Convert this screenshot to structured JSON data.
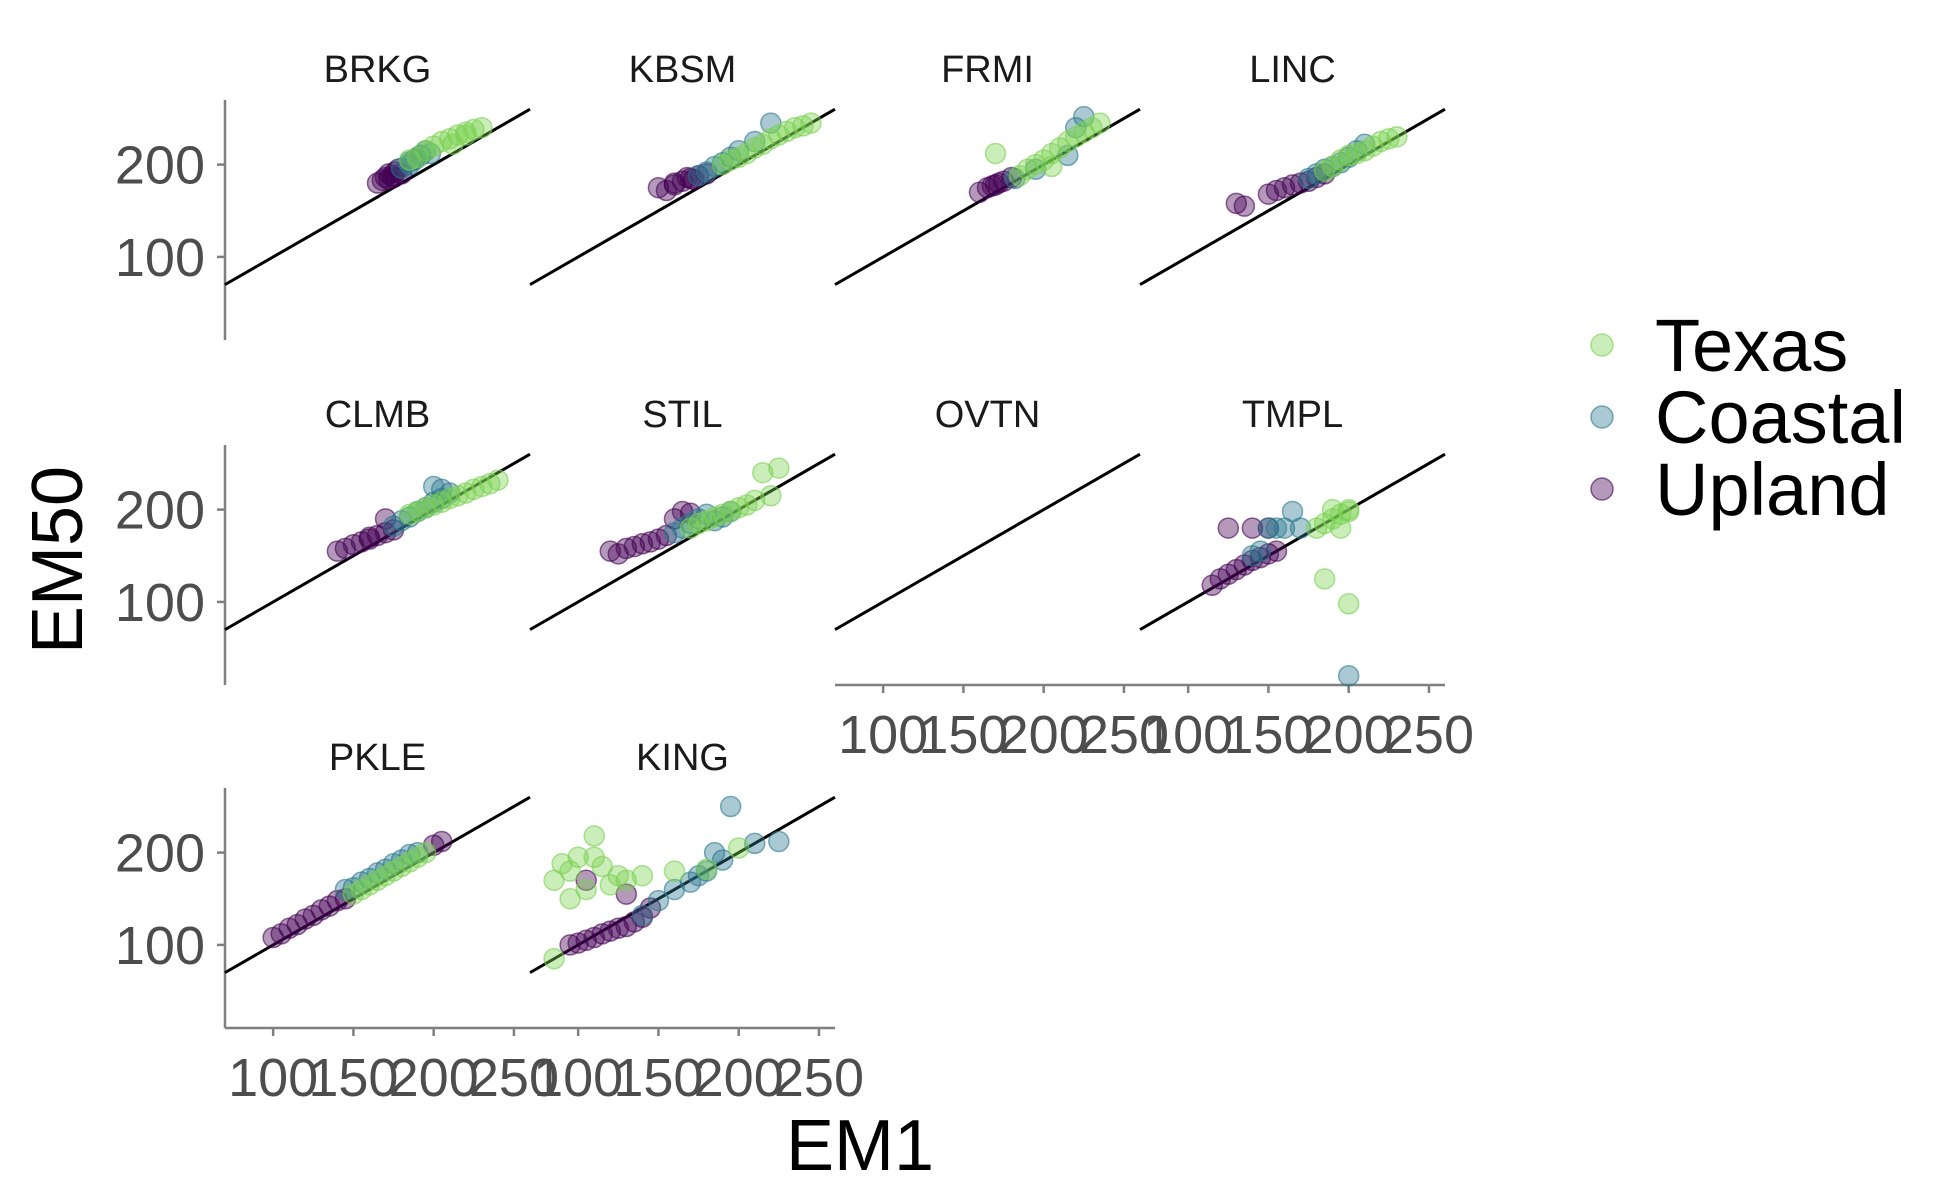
{
  "chart_data": {
    "type": "scatter",
    "xlabel": "EM1",
    "ylabel": "EM50",
    "xlim": [
      70,
      260
    ],
    "ylim": [
      10,
      270
    ],
    "x_ticks": [
      "100",
      "150",
      "200",
      "250"
    ],
    "y_ticks": [
      "100",
      "200"
    ],
    "reference_line": {
      "slope": 1,
      "intercept": 0
    },
    "legend": {
      "position": "right",
      "entries": [
        {
          "name": "Texas",
          "color": "#7ad151"
        },
        {
          "name": "Coastal",
          "color": "#2a788e"
        },
        {
          "name": "Upland",
          "color": "#440154"
        }
      ]
    },
    "point_opacity": 0.4,
    "facets": [
      {
        "label": "BRKG",
        "points": [
          {
            "group": "Upland",
            "x": [
              165,
              168,
              170,
              172,
              174,
              176,
              178,
              180,
              172,
              175
            ],
            "y": [
              180,
              183,
              186,
              190,
              188,
              192,
              195,
              190,
              184,
              186
            ]
          },
          {
            "group": "Coastal",
            "x": [
              180,
              185,
              188,
              192,
              195,
              198,
              185,
              190
            ],
            "y": [
              196,
              200,
              205,
              210,
              215,
              212,
              203,
              208
            ]
          },
          {
            "group": "Texas",
            "x": [
              185,
              190,
              195,
              200,
              205,
              210,
              215,
              220,
              225,
              230,
              220,
              212
            ],
            "y": [
              205,
              208,
              215,
              220,
              225,
              228,
              232,
              235,
              238,
              240,
              232,
              222
            ]
          }
        ]
      },
      {
        "label": "KBSM",
        "points": [
          {
            "group": "Upland",
            "x": [
              150,
              155,
              160,
              165,
              170,
              175,
              180,
              160,
              168,
              172
            ],
            "y": [
              175,
              172,
              178,
              182,
              185,
              188,
              190,
              180,
              186,
              184
            ]
          },
          {
            "group": "Coastal",
            "x": [
              175,
              180,
              185,
              190,
              195,
              200,
              210,
              220
            ],
            "y": [
              188,
              192,
              198,
              202,
              208,
              215,
              225,
              245
            ]
          },
          {
            "group": "Texas",
            "x": [
              190,
              195,
              200,
              205,
              210,
              215,
              220,
              225,
              230,
              235,
              240,
              245
            ],
            "y": [
              200,
              205,
              208,
              212,
              218,
              222,
              228,
              232,
              236,
              240,
              242,
              245
            ]
          }
        ]
      },
      {
        "label": "FRMI",
        "points": [
          {
            "group": "Upland",
            "x": [
              160,
              165,
              170,
              175,
              180,
              168,
              172
            ],
            "y": [
              170,
              175,
              178,
              182,
              186,
              177,
              180
            ]
          },
          {
            "group": "Coastal",
            "x": [
              182,
              195,
              215,
              220,
              225
            ],
            "y": [
              185,
              195,
              210,
              240,
              252
            ]
          },
          {
            "group": "Texas",
            "x": [
              170,
              185,
              190,
              195,
              200,
              205,
              210,
              215,
              220,
              225,
              230,
              235,
              205
            ],
            "y": [
              212,
              188,
              195,
              200,
              205,
              212,
              218,
              225,
              230,
              235,
              240,
              245,
              198
            ]
          }
        ]
      },
      {
        "label": "LINC",
        "points": [
          {
            "group": "Upland",
            "x": [
              130,
              135,
              150,
              155,
              160,
              165,
              170,
              175,
              180,
              185
            ],
            "y": [
              158,
              155,
              168,
              172,
              175,
              178,
              180,
              182,
              186,
              190
            ]
          },
          {
            "group": "Coastal",
            "x": [
              175,
              180,
              185,
              190,
              195,
              200,
              205,
              210
            ],
            "y": [
              185,
              190,
              195,
              198,
              202,
              208,
              215,
              222
            ]
          },
          {
            "group": "Texas",
            "x": [
              185,
              190,
              195,
              200,
              205,
              210,
              215,
              220,
              225,
              230
            ],
            "y": [
              193,
              198,
              205,
              210,
              212,
              215,
              220,
              225,
              228,
              230
            ]
          }
        ]
      },
      {
        "label": "CLMB",
        "points": [
          {
            "group": "Upland",
            "x": [
              140,
              145,
              150,
              155,
              160,
              165,
              170,
              175,
              170,
              160
            ],
            "y": [
              155,
              158,
              162,
              165,
              168,
              172,
              175,
              178,
              190,
              170
            ]
          },
          {
            "group": "Coastal",
            "x": [
              175,
              180,
              185,
              190,
              195,
              200,
              205,
              210,
              200,
              205
            ],
            "y": [
              182,
              188,
              192,
              198,
              202,
              208,
              212,
              218,
              225,
              222
            ]
          },
          {
            "group": "Texas",
            "x": [
              185,
              190,
              195,
              200,
              205,
              210,
              215,
              220,
              225,
              230,
              235,
              240
            ],
            "y": [
              195,
              198,
              202,
              205,
              208,
              212,
              215,
              218,
              222,
              225,
              228,
              232
            ]
          }
        ]
      },
      {
        "label": "STIL",
        "points": [
          {
            "group": "Upland",
            "x": [
              120,
              125,
              130,
              135,
              140,
              145,
              150,
              155,
              160,
              165,
              170
            ],
            "y": [
              155,
              152,
              158,
              160,
              163,
              165,
              168,
              172,
              190,
              198,
              196
            ]
          },
          {
            "group": "Coastal",
            "x": [
              160,
              165,
              170,
              175,
              180,
              185,
              190,
              195
            ],
            "y": [
              175,
              180,
              185,
              190,
              195,
              188,
              192,
              198
            ]
          },
          {
            "group": "Texas",
            "x": [
              170,
              175,
              180,
              185,
              190,
              195,
              200,
              205,
              210,
              215,
              220,
              225
            ],
            "y": [
              180,
              185,
              188,
              192,
              195,
              198,
              202,
              205,
              210,
              240,
              215,
              245
            ]
          }
        ]
      },
      {
        "label": "OVTN",
        "points": []
      },
      {
        "label": "TMPL",
        "points": [
          {
            "group": "Upland",
            "x": [
              115,
              120,
              125,
              130,
              135,
              140,
              145,
              150,
              155,
              125,
              150,
              140
            ],
            "y": [
              118,
              125,
              130,
              135,
              140,
              145,
              148,
              152,
              155,
              180,
              180,
              180
            ]
          },
          {
            "group": "Coastal",
            "x": [
              140,
              145,
              150,
              155,
              160,
              165,
              170,
              200
            ],
            "y": [
              150,
              155,
              180,
              180,
              180,
              198,
              180,
              20
            ]
          },
          {
            "group": "Texas",
            "x": [
              180,
              185,
              190,
              195,
              200,
              185,
              190,
              200,
              195,
              200
            ],
            "y": [
              180,
              185,
              190,
              195,
              198,
              125,
              200,
              200,
              180,
              98
            ]
          }
        ]
      },
      {
        "label": "PKLE",
        "points": [
          {
            "group": "Upland",
            "x": [
              100,
              105,
              110,
              115,
              120,
              125,
              130,
              135,
              140,
              145,
              200,
              205
            ],
            "y": [
              108,
              112,
              118,
              122,
              128,
              132,
              138,
              142,
              148,
              150,
              208,
              212
            ]
          },
          {
            "group": "Coastal",
            "x": [
              145,
              150,
              155,
              160,
              165,
              170,
              175,
              180,
              185,
              190
            ],
            "y": [
              160,
              162,
              168,
              172,
              178,
              182,
              188,
              192,
              198,
              200
            ]
          },
          {
            "group": "Texas",
            "x": [
              150,
              155,
              160,
              165,
              170,
              175,
              180,
              185,
              190,
              195
            ],
            "y": [
              155,
              160,
              165,
              170,
              175,
              180,
              185,
              190,
              195,
              200
            ]
          }
        ]
      },
      {
        "label": "KING",
        "points": [
          {
            "group": "Upland",
            "x": [
              95,
              100,
              105,
              110,
              115,
              120,
              125,
              130,
              135,
              140,
              145,
              130,
              105
            ],
            "y": [
              100,
              102,
              105,
              108,
              112,
              115,
              118,
              120,
              125,
              130,
              140,
              155,
              170
            ]
          },
          {
            "group": "Coastal",
            "x": [
              140,
              150,
              160,
              170,
              180,
              190,
              195,
              210,
              225,
              185,
              175
            ],
            "y": [
              132,
              148,
              160,
              168,
              180,
              192,
              250,
              210,
              212,
              200,
              175
            ]
          },
          {
            "group": "Texas",
            "x": [
              85,
              90,
              95,
              100,
              105,
              110,
              115,
              120,
              125,
              130,
              140,
              160,
              180,
              200,
              95,
              110,
              85
            ],
            "y": [
              170,
              188,
              180,
              195,
              160,
              218,
              185,
              165,
              175,
              170,
              175,
              180,
              182,
              205,
              150,
              195,
              85
            ]
          }
        ]
      }
    ]
  }
}
